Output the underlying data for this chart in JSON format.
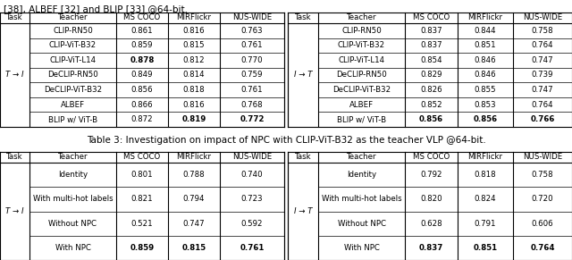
{
  "header_text": "[38], ALBEF [32] and BLIP [33] @64-bit.",
  "table2_caption": "Table 3: Investigation on impact of NPC with CLIP-ViT-B32 as the teacher VLP @64-bit.",
  "table1_left": {
    "task": "T → I",
    "cols": [
      "Task",
      "Teacher",
      "MS COCO",
      "MIRFlickr",
      "NUS-WIDE"
    ],
    "rows": [
      [
        "CLIP-RN50",
        "0.861",
        "0.816",
        "0.763"
      ],
      [
        "CLIP-ViT-B32",
        "0.859",
        "0.815",
        "0.761"
      ],
      [
        "CLIP-ViT-L14",
        "0.878",
        "0.812",
        "0.770"
      ],
      [
        "DeCLIP-RN50",
        "0.849",
        "0.814",
        "0.759"
      ],
      [
        "DeCLIP-ViT-B32",
        "0.856",
        "0.818",
        "0.761"
      ],
      [
        "ALBEF",
        "0.866",
        "0.816",
        "0.768"
      ],
      [
        "BLIP w/ ViT-B",
        "0.872",
        "0.819",
        "0.772"
      ]
    ],
    "bold": [
      [
        false,
        false,
        false,
        false
      ],
      [
        false,
        false,
        false,
        false
      ],
      [
        false,
        true,
        false,
        false
      ],
      [
        false,
        false,
        false,
        false
      ],
      [
        false,
        false,
        false,
        false
      ],
      [
        false,
        false,
        false,
        false
      ],
      [
        false,
        false,
        true,
        true
      ]
    ]
  },
  "table1_right": {
    "task": "I → T",
    "cols": [
      "Task",
      "Teacher",
      "MS COCO",
      "MIRFlickr",
      "NUS-WIDE"
    ],
    "rows": [
      [
        "CLIP-RN50",
        "0.837",
        "0.844",
        "0.758"
      ],
      [
        "CLIP-ViT-B32",
        "0.837",
        "0.851",
        "0.764"
      ],
      [
        "CLIP-ViT-L14",
        "0.854",
        "0.846",
        "0.747"
      ],
      [
        "DeCLIP-RN50",
        "0.829",
        "0.846",
        "0.739"
      ],
      [
        "DeCLIP-ViT-B32",
        "0.826",
        "0.855",
        "0.747"
      ],
      [
        "ALBEF",
        "0.852",
        "0.853",
        "0.764"
      ],
      [
        "BLIP w/ ViT-B",
        "0.856",
        "0.856",
        "0.766"
      ]
    ],
    "bold": [
      [
        false,
        false,
        false,
        false
      ],
      [
        false,
        false,
        false,
        false
      ],
      [
        false,
        false,
        false,
        false
      ],
      [
        false,
        false,
        false,
        false
      ],
      [
        false,
        false,
        false,
        false
      ],
      [
        false,
        false,
        false,
        false
      ],
      [
        false,
        true,
        true,
        true
      ]
    ]
  },
  "table2_left": {
    "task": "T → I",
    "cols": [
      "Task",
      "Teacher",
      "MS COCO",
      "MIRFlickr",
      "NUS-WIDE"
    ],
    "rows": [
      [
        "Identity",
        "0.801",
        "0.788",
        "0.740"
      ],
      [
        "With multi-hot labels",
        "0.821",
        "0.794",
        "0.723"
      ],
      [
        "Without NPC",
        "0.521",
        "0.747",
        "0.592"
      ],
      [
        "With NPC",
        "0.859",
        "0.815",
        "0.761"
      ]
    ],
    "bold": [
      [
        false,
        false,
        false,
        false
      ],
      [
        false,
        false,
        false,
        false
      ],
      [
        false,
        false,
        false,
        false
      ],
      [
        false,
        true,
        true,
        true
      ]
    ]
  },
  "table2_right": {
    "task": "I → T",
    "cols": [
      "Task",
      "Teacher",
      "MS COCO",
      "MIRFlickr",
      "NUS-WIDE"
    ],
    "rows": [
      [
        "Identity",
        "0.792",
        "0.818",
        "0.758"
      ],
      [
        "With multi-hot labels",
        "0.820",
        "0.824",
        "0.720"
      ],
      [
        "Without NPC",
        "0.628",
        "0.791",
        "0.606"
      ],
      [
        "With NPC",
        "0.837",
        "0.851",
        "0.764"
      ]
    ],
    "bold": [
      [
        false,
        false,
        false,
        false
      ],
      [
        false,
        false,
        false,
        false
      ],
      [
        false,
        false,
        false,
        false
      ],
      [
        false,
        true,
        true,
        true
      ]
    ]
  }
}
